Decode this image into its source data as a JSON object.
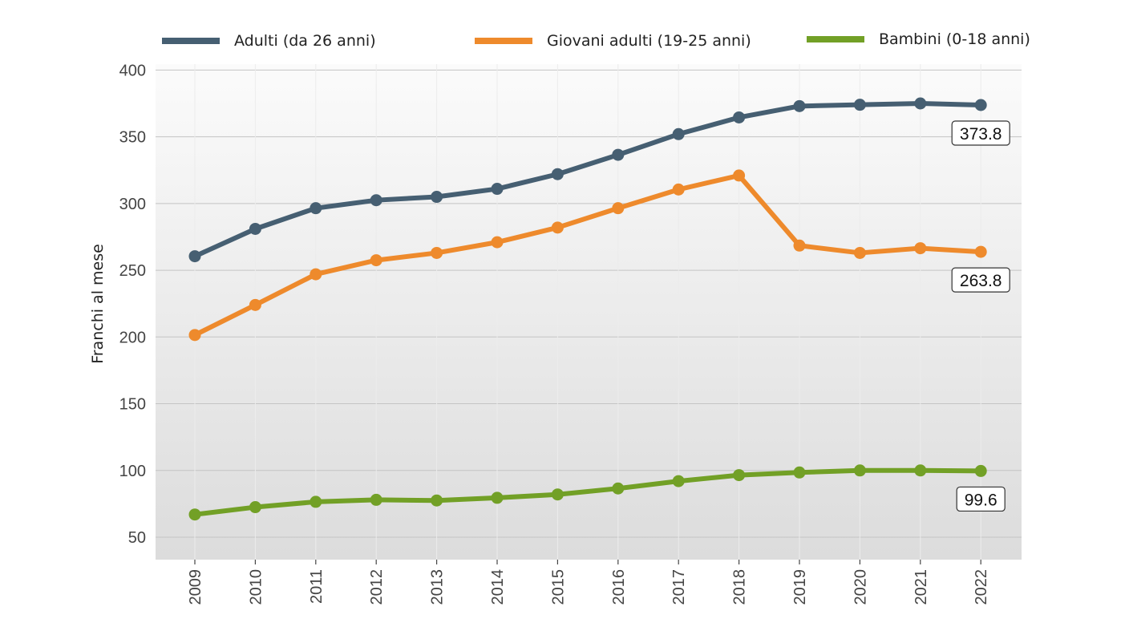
{
  "chart_data": {
    "type": "line",
    "title": "",
    "xlabel": "",
    "ylabel": "Franchi al mese",
    "ylim": [
      33,
      407
    ],
    "yticks": [
      50,
      100,
      150,
      200,
      250,
      300,
      350,
      400
    ],
    "categories": [
      "2009",
      "2010",
      "2011",
      "2012",
      "2013",
      "2014",
      "2015",
      "2016",
      "2017",
      "2018",
      "2019",
      "2020",
      "2021",
      "2022"
    ],
    "legend_position": "top",
    "grid": true,
    "series": [
      {
        "name": "Adulti (da 26 anni)",
        "color": "#465f72",
        "values": [
          260.5,
          281,
          296.5,
          302.5,
          305,
          311,
          322,
          336.5,
          352,
          364.5,
          373,
          374,
          375,
          373.8
        ],
        "end_label": "373.8"
      },
      {
        "name": "Giovani adulti (19-25 anni)",
        "color": "#ee8a2c",
        "values": [
          201.5,
          224,
          247,
          257.5,
          263,
          271,
          282,
          296.5,
          310.5,
          321,
          268.5,
          263,
          266.5,
          263.8
        ],
        "end_label": "263.8"
      },
      {
        "name": "Bambini (0-18 anni)",
        "color": "#72a026",
        "values": [
          67,
          72.5,
          76.5,
          78,
          77.5,
          79.5,
          82,
          86.5,
          92,
          96.5,
          98.5,
          100,
          100,
          99.6
        ],
        "end_label": "99.6"
      }
    ]
  }
}
